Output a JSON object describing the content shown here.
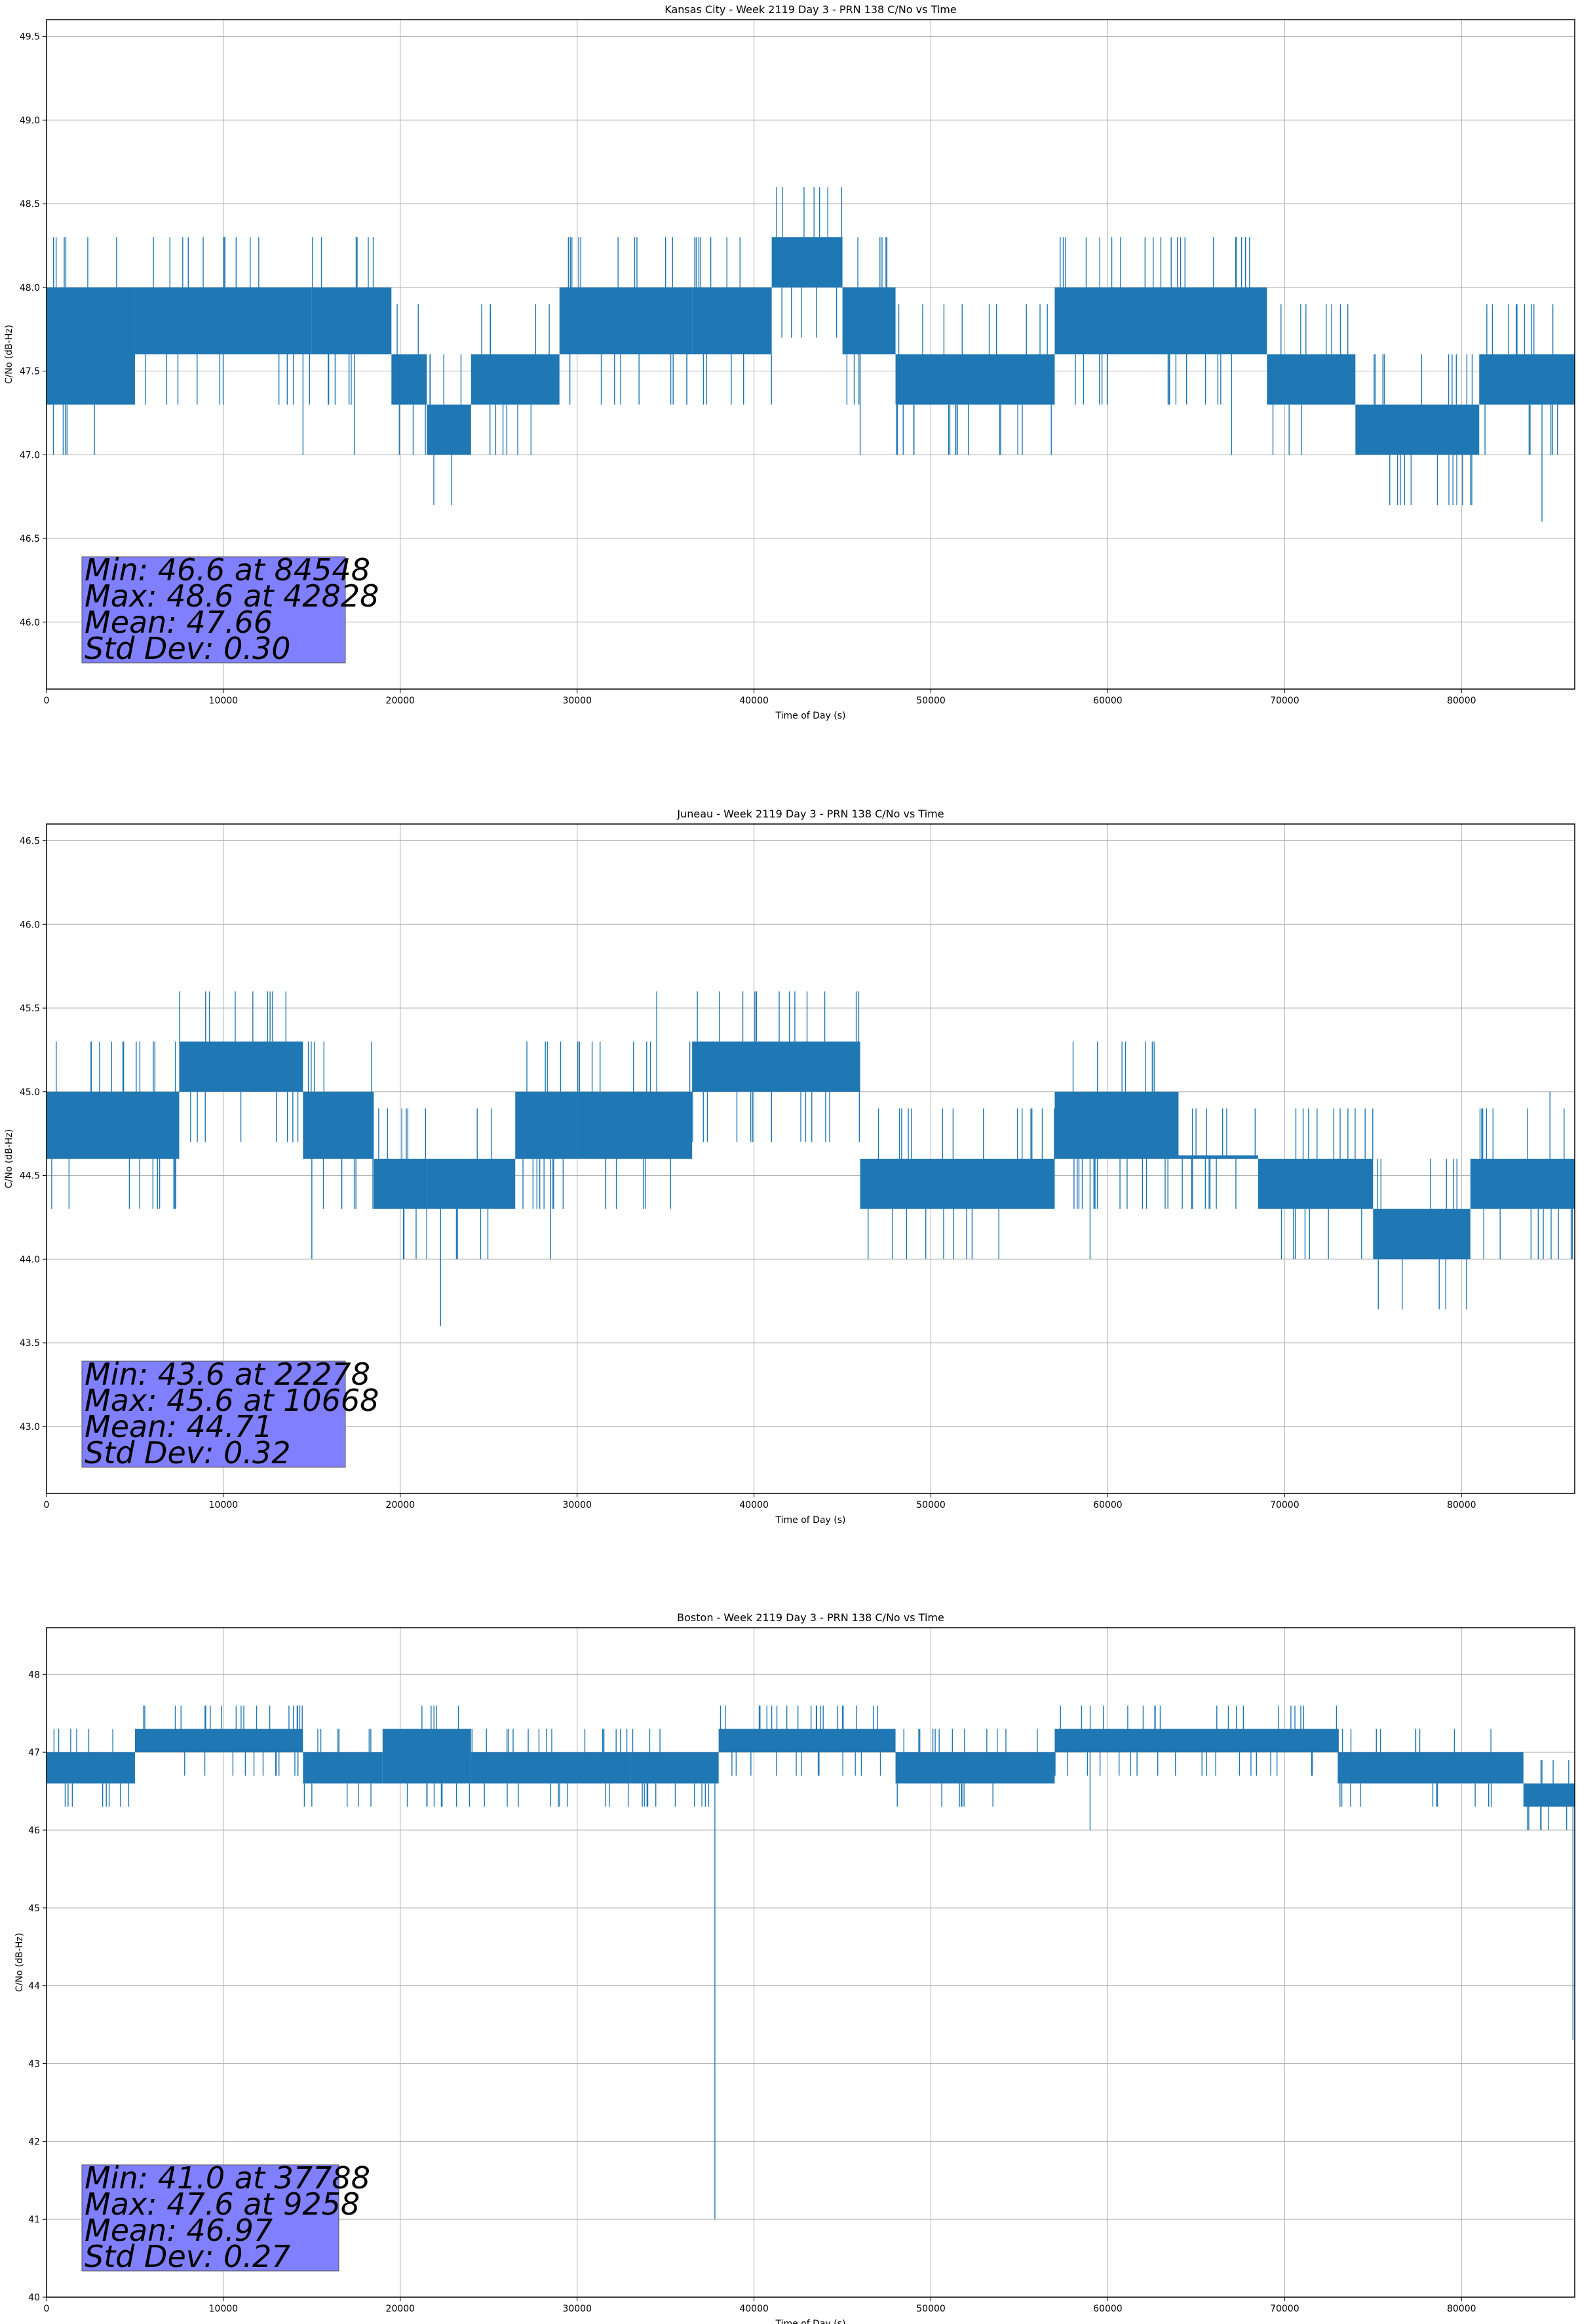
{
  "colors": {
    "series": "#1f77b4",
    "grid": "#b0b0b0",
    "statbox": "#8080ff",
    "axes": "#000000"
  },
  "chart_data": [
    {
      "type": "line",
      "title": "Kansas City - Week 2119 Day 3 - PRN 138 C/No vs Time",
      "xlabel": "Time of Day (s)",
      "ylabel": "C/No (dB-Hz)",
      "xlim": [
        0,
        86400
      ],
      "ylim": [
        45.6,
        49.6
      ],
      "xticks": [
        0,
        10000,
        20000,
        30000,
        40000,
        50000,
        60000,
        70000,
        80000
      ],
      "xtick_labels": [
        "0",
        "10000",
        "20000",
        "30000",
        "40000",
        "50000",
        "60000",
        "70000",
        "80000"
      ],
      "yticks": [
        46.0,
        46.5,
        47.0,
        47.5,
        48.0,
        48.5,
        49.0,
        49.5
      ],
      "ytick_labels": [
        "46.0",
        "46.5",
        "47.0",
        "47.5",
        "48.0",
        "48.5",
        "49.0",
        "49.5"
      ],
      "grid": true,
      "bands": [
        {
          "x0": 0,
          "x1": 5000,
          "lo": 47.3,
          "hi": 48.0
        },
        {
          "x0": 5000,
          "x1": 15000,
          "lo": 47.6,
          "hi": 48.0
        },
        {
          "x0": 15000,
          "x1": 19500,
          "lo": 47.6,
          "hi": 48.0
        },
        {
          "x0": 19500,
          "x1": 21500,
          "lo": 47.3,
          "hi": 47.6
        },
        {
          "x0": 21500,
          "x1": 24000,
          "lo": 47.0,
          "hi": 47.3
        },
        {
          "x0": 24000,
          "x1": 29000,
          "lo": 47.3,
          "hi": 47.6
        },
        {
          "x0": 29000,
          "x1": 36500,
          "lo": 47.6,
          "hi": 48.0
        },
        {
          "x0": 36500,
          "x1": 41000,
          "lo": 47.6,
          "hi": 48.0
        },
        {
          "x0": 41000,
          "x1": 45000,
          "lo": 48.0,
          "hi": 48.3
        },
        {
          "x0": 45000,
          "x1": 48000,
          "lo": 47.6,
          "hi": 48.0
        },
        {
          "x0": 48000,
          "x1": 57000,
          "lo": 47.3,
          "hi": 47.6
        },
        {
          "x0": 57000,
          "x1": 69000,
          "lo": 47.6,
          "hi": 48.0
        },
        {
          "x0": 69000,
          "x1": 74000,
          "lo": 47.3,
          "hi": 47.6
        },
        {
          "x0": 74000,
          "x1": 81000,
          "lo": 47.0,
          "hi": 47.3
        },
        {
          "x0": 81000,
          "x1": 86400,
          "lo": 47.3,
          "hi": 47.6
        }
      ],
      "spikes": [
        [
          42828,
          48.6
        ],
        [
          84548,
          46.6
        ],
        [
          14500,
          47.0
        ],
        [
          17400,
          47.0
        ],
        [
          46000,
          47.0
        ],
        [
          51000,
          47.0
        ],
        [
          67000,
          47.0
        ],
        [
          36200,
          47.3
        ],
        [
          1000,
          48.3
        ],
        [
          12000,
          48.3
        ],
        [
          35000,
          48.3
        ],
        [
          63000,
          48.3
        ]
      ],
      "stats": {
        "min": "Min: 46.6 at 84548",
        "max": "Max: 48.6 at 42828",
        "mean": "Mean: 47.66",
        "std": "Std Dev: 0.30"
      }
    },
    {
      "type": "line",
      "title": "Juneau - Week 2119 Day 3 - PRN 138 C/No vs Time",
      "xlabel": "Time of Day (s)",
      "ylabel": "C/No (dB-Hz)",
      "xlim": [
        0,
        86400
      ],
      "ylim": [
        42.6,
        46.6
      ],
      "xticks": [
        0,
        10000,
        20000,
        30000,
        40000,
        50000,
        60000,
        70000,
        80000
      ],
      "xtick_labels": [
        "0",
        "10000",
        "20000",
        "30000",
        "40000",
        "50000",
        "60000",
        "70000",
        "80000"
      ],
      "yticks": [
        43.0,
        43.5,
        44.0,
        44.5,
        45.0,
        45.5,
        46.0,
        46.5
      ],
      "ytick_labels": [
        "43.0",
        "43.5",
        "44.0",
        "44.5",
        "45.0",
        "45.5",
        "46.0",
        "46.5"
      ],
      "grid": true,
      "bands": [
        {
          "x0": 0,
          "x1": 7500,
          "lo": 44.6,
          "hi": 45.0
        },
        {
          "x0": 7500,
          "x1": 14500,
          "lo": 45.0,
          "hi": 45.3
        },
        {
          "x0": 14500,
          "x1": 18500,
          "lo": 44.6,
          "hi": 45.0
        },
        {
          "x0": 18500,
          "x1": 21500,
          "lo": 44.3,
          "hi": 44.6
        },
        {
          "x0": 21500,
          "x1": 26500,
          "lo": 44.3,
          "hi": 44.6
        },
        {
          "x0": 26500,
          "x1": 30000,
          "lo": 44.6,
          "hi": 45.0
        },
        {
          "x0": 30000,
          "x1": 36500,
          "lo": 44.6,
          "hi": 45.0
        },
        {
          "x0": 36500,
          "x1": 46000,
          "lo": 45.0,
          "hi": 45.3
        },
        {
          "x0": 46000,
          "x1": 51000,
          "lo": 44.3,
          "hi": 44.6
        },
        {
          "x0": 51000,
          "x1": 57000,
          "lo": 44.3,
          "hi": 44.6
        },
        {
          "x0": 57000,
          "x1": 64000,
          "lo": 44.6,
          "hi": 45.0
        },
        {
          "x0": 64000,
          "x1": 68500,
          "lo": 44.6,
          "hi": 44.6
        },
        {
          "x0": 68500,
          "x1": 75000,
          "lo": 44.3,
          "hi": 44.6
        },
        {
          "x0": 75000,
          "x1": 80500,
          "lo": 44.0,
          "hi": 44.3
        },
        {
          "x0": 80500,
          "x1": 86400,
          "lo": 44.3,
          "hi": 44.6
        }
      ],
      "spikes": [
        [
          22278,
          43.6
        ],
        [
          10668,
          45.6
        ],
        [
          34500,
          45.6
        ],
        [
          44000,
          45.6
        ],
        [
          12500,
          45.6
        ],
        [
          15000,
          44.0
        ],
        [
          21500,
          44.0
        ],
        [
          28500,
          44.0
        ],
        [
          59000,
          44.0
        ],
        [
          70500,
          44.0
        ],
        [
          3000,
          45.3
        ],
        [
          85000,
          45.0
        ]
      ],
      "stats": {
        "min": "Min: 43.6 at 22278",
        "max": "Max: 45.6 at 10668",
        "mean": "Mean: 44.71",
        "std": "Std Dev: 0.32"
      }
    },
    {
      "type": "line",
      "title": "Boston - Week 2119 Day 3 - PRN 138 C/No vs Time",
      "xlabel": "Time of Day (s)",
      "ylabel": "C/No (dB-Hz)",
      "xlim": [
        0,
        86400
      ],
      "ylim": [
        40.0,
        48.6
      ],
      "xticks": [
        0,
        10000,
        20000,
        30000,
        40000,
        50000,
        60000,
        70000,
        80000
      ],
      "xtick_labels": [
        "0",
        "10000",
        "20000",
        "30000",
        "40000",
        "50000",
        "60000",
        "70000",
        "80000"
      ],
      "yticks": [
        40,
        41,
        42,
        43,
        44,
        45,
        46,
        47,
        48
      ],
      "ytick_labels": [
        "40",
        "41",
        "42",
        "43",
        "44",
        "45",
        "46",
        "47",
        "48"
      ],
      "grid": true,
      "bands": [
        {
          "x0": 0,
          "x1": 5000,
          "lo": 46.6,
          "hi": 47.0
        },
        {
          "x0": 5000,
          "x1": 14500,
          "lo": 47.0,
          "hi": 47.3
        },
        {
          "x0": 14500,
          "x1": 19000,
          "lo": 46.6,
          "hi": 47.0
        },
        {
          "x0": 19000,
          "x1": 24000,
          "lo": 46.6,
          "hi": 47.3
        },
        {
          "x0": 24000,
          "x1": 33000,
          "lo": 46.6,
          "hi": 47.0
        },
        {
          "x0": 33000,
          "x1": 38000,
          "lo": 46.6,
          "hi": 47.0
        },
        {
          "x0": 38000,
          "x1": 48000,
          "lo": 47.0,
          "hi": 47.3
        },
        {
          "x0": 48000,
          "x1": 57000,
          "lo": 46.6,
          "hi": 47.0
        },
        {
          "x0": 57000,
          "x1": 73000,
          "lo": 47.0,
          "hi": 47.3
        },
        {
          "x0": 73000,
          "x1": 83500,
          "lo": 46.6,
          "hi": 47.0
        },
        {
          "x0": 83500,
          "x1": 86400,
          "lo": 46.3,
          "hi": 46.6
        }
      ],
      "spikes": [
        [
          37788,
          41.0
        ],
        [
          59000,
          46.0
        ],
        [
          86300,
          43.3
        ],
        [
          28500,
          46.3
        ],
        [
          9258,
          47.6
        ],
        [
          11000,
          47.6
        ],
        [
          41000,
          47.6
        ],
        [
          45000,
          47.6
        ],
        [
          62000,
          47.6
        ],
        [
          15000,
          46.3
        ],
        [
          84500,
          46.0
        ]
      ],
      "stats": {
        "min": "Min: 41.0 at 37788",
        "max": "Max: 47.6 at 9258",
        "mean": "Mean: 46.97",
        "std": "Std Dev: 0.27"
      }
    }
  ]
}
